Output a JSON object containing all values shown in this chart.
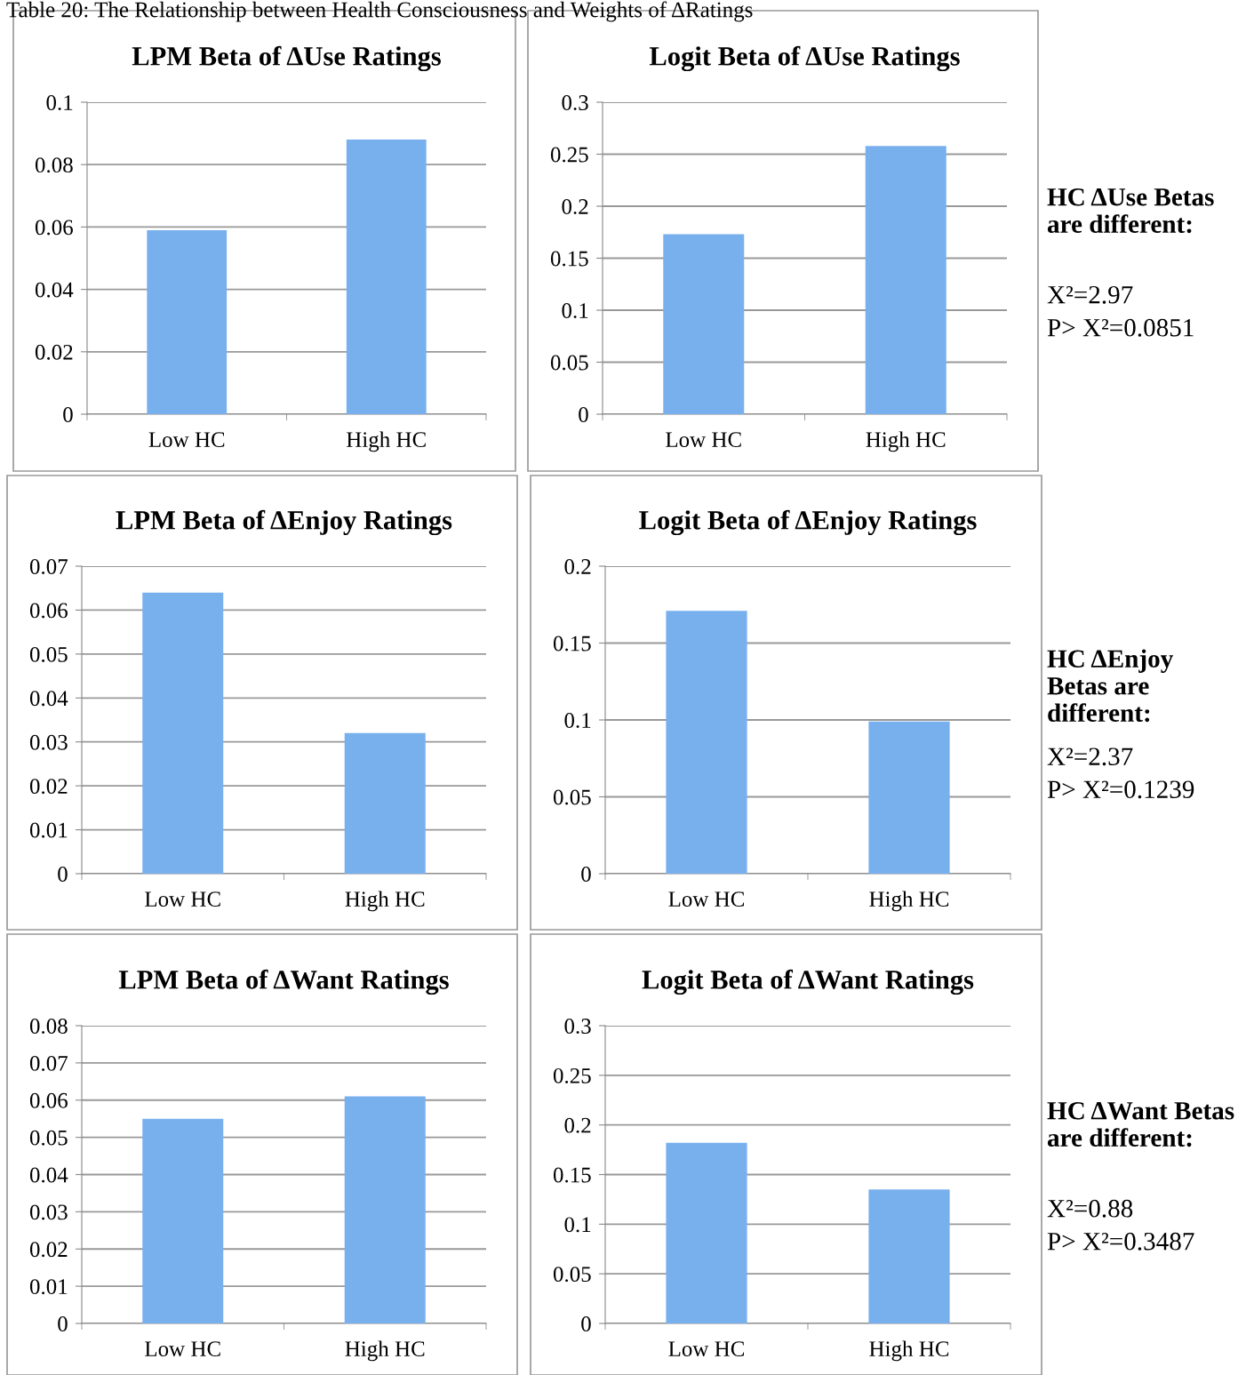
{
  "chart_data": [
    {
      "type": "bar",
      "title": "LPM Beta of ΔUse Ratings",
      "categories": [
        "Low HC",
        "High HC"
      ],
      "values": [
        0.059,
        0.088
      ],
      "color": "#78b0ee",
      "ylim": [
        0,
        0.1
      ],
      "yticks": [
        0,
        0.02,
        0.04,
        0.06,
        0.08,
        0.1
      ],
      "grid": "y",
      "annotations": [
        "Table 20: The Relationship between Health Consciousness and Weights of ΔRatings"
      ]
    },
    {
      "type": "bar",
      "title": "Logit Beta of ΔUse Ratings",
      "categories": [
        "Low HC",
        "High HC"
      ],
      "values": [
        0.173,
        0.258
      ],
      "color": "#78b0ee",
      "ylim": [
        0,
        0.3
      ],
      "yticks": [
        0,
        0.05,
        0.1,
        0.15,
        0.2,
        0.25,
        0.3
      ],
      "grid": "y",
      "annotations": [
        "HC ΔUse Betas are different:",
        "X²=2.97",
        "P> X²=0.0851"
      ]
    },
    {
      "type": "bar",
      "title": "LPM Beta of ΔEnjoy Ratings",
      "categories": [
        "Low HC",
        "High HC"
      ],
      "values": [
        0.064,
        0.032
      ],
      "color": "#78b0ee",
      "ylim": [
        0,
        0.07
      ],
      "yticks": [
        0,
        0.01,
        0.02,
        0.03,
        0.04,
        0.05,
        0.06,
        0.07
      ],
      "grid": "y"
    },
    {
      "type": "bar",
      "title": "Logit Beta of ΔEnjoy Ratings",
      "categories": [
        "Low HC",
        "High HC"
      ],
      "values": [
        0.171,
        0.099
      ],
      "color": "#78b0ee",
      "ylim": [
        0,
        0.2
      ],
      "yticks": [
        0,
        0.05,
        0.1,
        0.15,
        0.2
      ],
      "grid": "y",
      "annotations": [
        "HC ΔEnjoy Betas are different:",
        "X²=2.37",
        "P> X²=0.1239"
      ]
    },
    {
      "type": "bar",
      "title": "LPM Beta of ΔWant Ratings",
      "categories": [
        "Low HC",
        "High HC"
      ],
      "values": [
        0.055,
        0.061
      ],
      "color": "#78b0ee",
      "ylim": [
        0,
        0.08
      ],
      "yticks": [
        0,
        0.01,
        0.02,
        0.03,
        0.04,
        0.05,
        0.06,
        0.07,
        0.08
      ],
      "grid": "y"
    },
    {
      "type": "bar",
      "title": "Logit Beta of ΔWant Ratings",
      "categories": [
        "Low HC",
        "High HC"
      ],
      "values": [
        0.182,
        0.135
      ],
      "color": "#78b0ee",
      "ylim": [
        0,
        0.3
      ],
      "yticks": [
        0,
        0.05,
        0.1,
        0.15,
        0.2,
        0.25,
        0.3
      ],
      "grid": "y",
      "annotations": [
        "HC ΔWant Betas are different:",
        "X²=0.88",
        "P> X²=0.3487"
      ]
    }
  ]
}
